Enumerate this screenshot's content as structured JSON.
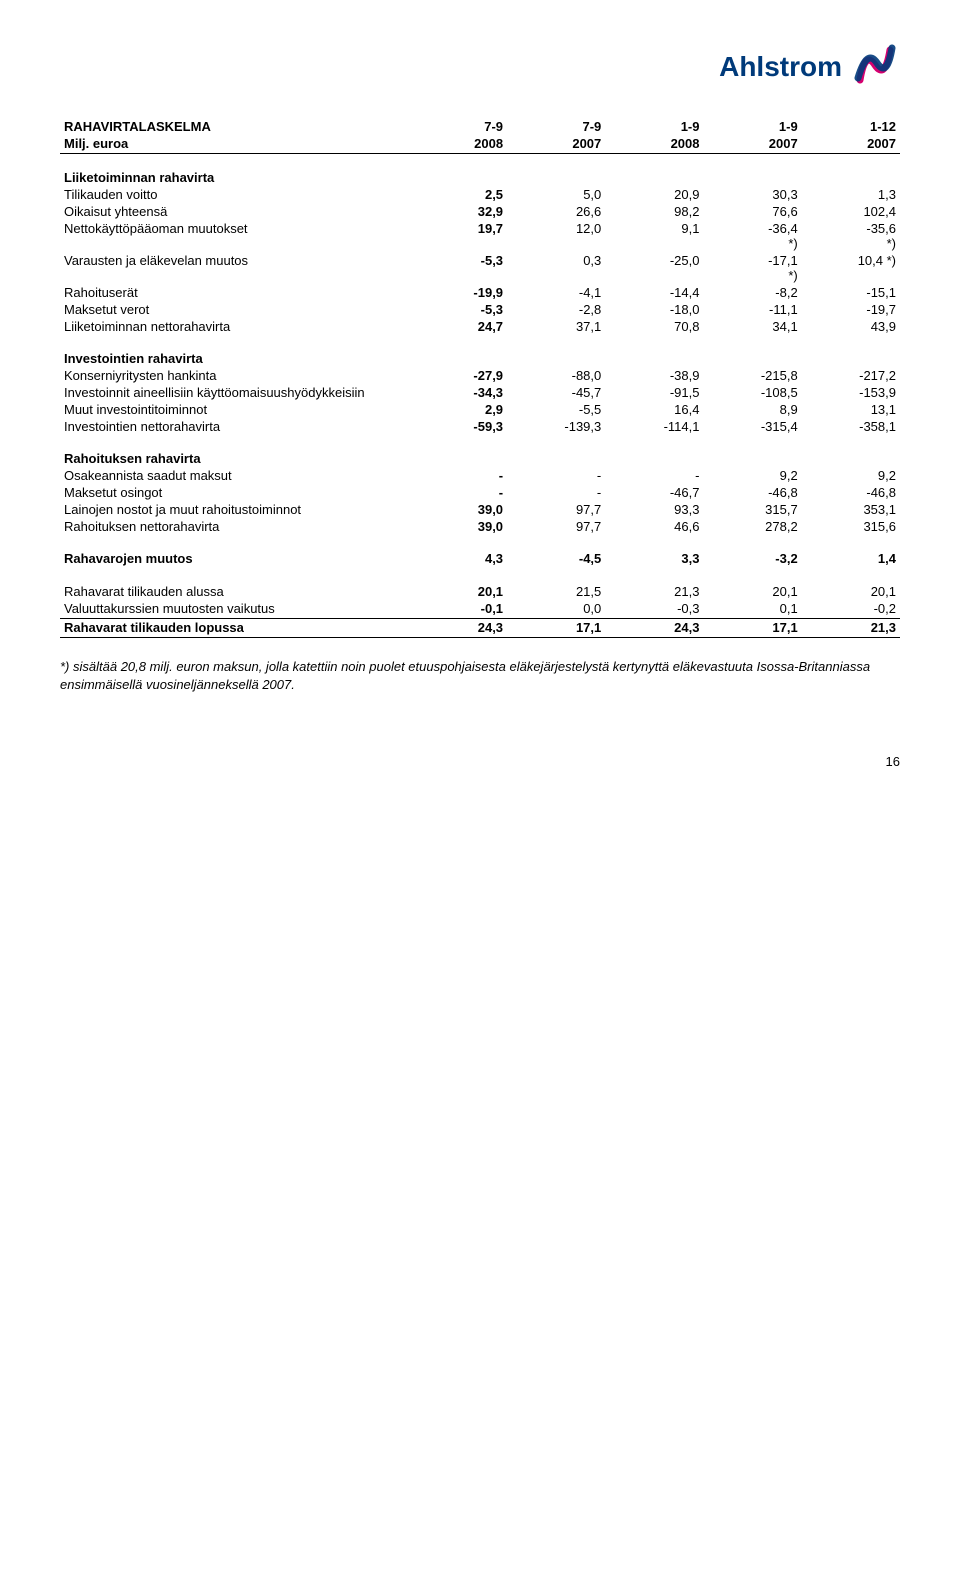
{
  "logo_text": "Ahlstrom",
  "title": "RAHAVIRTALASKELMA",
  "subtitle": "Milj. euroa",
  "col_headers_top": [
    "7-9",
    "7-9",
    "1-9",
    "1-9",
    "1-12"
  ],
  "col_headers_bot": [
    "2008",
    "2007",
    "2008",
    "2007",
    "2007"
  ],
  "sections": {
    "s1": {
      "title": "Liiketoiminnan rahavirta",
      "rows": [
        {
          "label": "Tilikauden voitto",
          "v": [
            "2,5",
            "5,0",
            "20,9",
            "30,3",
            "1,3"
          ],
          "bold_row": false,
          "bold_first": true
        },
        {
          "label": "Oikaisut yhteensä",
          "v": [
            "32,9",
            "26,6",
            "98,2",
            "76,6",
            "102,4"
          ],
          "bold_row": false,
          "bold_first": true
        },
        {
          "label": "Nettokäyttöpääoman muutokset",
          "v": [
            "19,7",
            "12,0",
            "9,1",
            "-36,4\n*)",
            "-35,6\n*)"
          ],
          "bold_row": false,
          "bold_first": true
        },
        {
          "label": "Varausten ja eläkevelan muutos",
          "v": [
            "-5,3",
            "0,3",
            "-25,0",
            "-17,1\n*)",
            "10,4 *)"
          ],
          "bold_row": false,
          "bold_first": true
        },
        {
          "label": "Rahoituserät",
          "v": [
            "-19,9",
            "-4,1",
            "-14,4",
            "-8,2",
            "-15,1"
          ],
          "bold_row": false,
          "bold_first": true
        },
        {
          "label": "Maksetut verot",
          "v": [
            "-5,3",
            "-2,8",
            "-18,0",
            "-11,1",
            "-19,7"
          ],
          "bold_row": false,
          "bold_first": true
        },
        {
          "label": "Liiketoiminnan nettorahavirta",
          "v": [
            "24,7",
            "37,1",
            "70,8",
            "34,1",
            "43,9"
          ],
          "bold_row": false,
          "bold_first": true
        }
      ]
    },
    "s2": {
      "title": "Investointien rahavirta",
      "rows": [
        {
          "label": "Konserniyritysten hankinta",
          "v": [
            "-27,9",
            "-88,0",
            "-38,9",
            "-215,8",
            "-217,2"
          ],
          "bold_first": true
        },
        {
          "label": "Investoinnit aineellisiin käyttöomaisuushyödykkeisiin",
          "v": [
            "-34,3",
            "-45,7",
            "-91,5",
            "-108,5",
            "-153,9"
          ],
          "bold_first": true
        },
        {
          "label": "Muut investointitoiminnot",
          "v": [
            "2,9",
            "-5,5",
            "16,4",
            "8,9",
            "13,1"
          ],
          "bold_first": true
        },
        {
          "label": "Investointien nettorahavirta",
          "v": [
            "-59,3",
            "-139,3",
            "-114,1",
            "-315,4",
            "-358,1"
          ],
          "bold_first": true
        }
      ]
    },
    "s3": {
      "title": "Rahoituksen rahavirta",
      "rows": [
        {
          "label": "Osakeannista saadut maksut",
          "v": [
            "-",
            "-",
            "-",
            "9,2",
            "9,2"
          ],
          "bold_first": true
        },
        {
          "label": "Maksetut osingot",
          "v": [
            "-",
            "-",
            "-46,7",
            "-46,8",
            "-46,8"
          ],
          "bold_first": true
        },
        {
          "label": "Lainojen nostot ja muut rahoitustoiminnot",
          "v": [
            "39,0",
            "97,7",
            "93,3",
            "315,7",
            "353,1"
          ],
          "bold_first": true
        },
        {
          "label": "Rahoituksen nettorahavirta",
          "v": [
            "39,0",
            "97,7",
            "46,6",
            "278,2",
            "315,6"
          ],
          "bold_first": true
        }
      ]
    },
    "s4": {
      "title": "Rahavarojen muutos",
      "title_vals": [
        "4,3",
        "-4,5",
        "3,3",
        "-3,2",
        "1,4"
      ],
      "rows": [
        {
          "label": "Rahavarat tilikauden alussa",
          "v": [
            "20,1",
            "21,5",
            "21,3",
            "20,1",
            "20,1"
          ],
          "bold_first": true
        },
        {
          "label": "Valuuttakurssien muutosten vaikutus",
          "v": [
            "-0,1",
            "0,0",
            "-0,3",
            "0,1",
            "-0,2"
          ],
          "bold_first": true
        },
        {
          "label": "Rahavarat tilikauden lopussa",
          "v": [
            "24,3",
            "17,1",
            "24,3",
            "17,1",
            "21,3"
          ],
          "bold_all": true
        }
      ]
    }
  },
  "footnote": "*) sisältää 20,8 milj. euron maksun, jolla katettiin noin puolet etuuspohjaisesta eläkejärjestelystä kertynyttä eläkevastuuta Isossa-Britanniassa ensimmäisellä vuosineljänneksellä 2007.",
  "page_number": "16"
}
